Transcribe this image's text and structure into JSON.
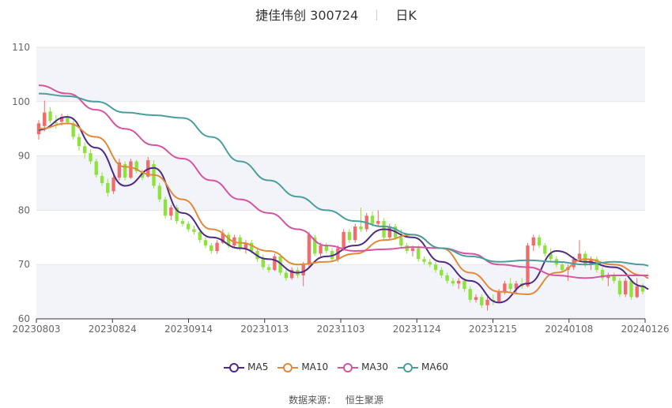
{
  "title": {
    "name": "捷佳伟创 300724",
    "period": "日K"
  },
  "source": {
    "label": "数据来源：",
    "value": "恒生聚源"
  },
  "chart_data": {
    "type": "candlestick",
    "ylim": [
      60,
      110
    ],
    "yticks": [
      60,
      70,
      80,
      90,
      100,
      110
    ],
    "xticks": [
      "20230803",
      "20230824",
      "20230914",
      "20231013",
      "20231103",
      "20231124",
      "20231215",
      "20240108",
      "20240126"
    ],
    "up_color": "#f36a6a",
    "down_color": "#8de33c",
    "candles": [
      {
        "o": 94.0,
        "h": 96.6,
        "l": 93.0,
        "c": 96.0
      },
      {
        "o": 95.5,
        "h": 100.2,
        "l": 94.5,
        "c": 98.0
      },
      {
        "o": 98.2,
        "h": 99.0,
        "l": 96.0,
        "c": 96.5
      },
      {
        "o": 96.2,
        "h": 97.5,
        "l": 95.0,
        "c": 96.0
      },
      {
        "o": 96.3,
        "h": 97.8,
        "l": 95.6,
        "c": 97.2
      },
      {
        "o": 97.0,
        "h": 97.6,
        "l": 95.8,
        "c": 96.2
      },
      {
        "o": 96.0,
        "h": 96.5,
        "l": 93.0,
        "c": 93.5
      },
      {
        "o": 93.5,
        "h": 94.2,
        "l": 91.0,
        "c": 91.8
      },
      {
        "o": 91.8,
        "h": 92.5,
        "l": 89.5,
        "c": 90.5
      },
      {
        "o": 90.5,
        "h": 91.2,
        "l": 88.5,
        "c": 89.0
      },
      {
        "o": 89.0,
        "h": 89.5,
        "l": 86.0,
        "c": 86.5
      },
      {
        "o": 86.3,
        "h": 87.0,
        "l": 84.5,
        "c": 85.0
      },
      {
        "o": 85.0,
        "h": 85.8,
        "l": 82.5,
        "c": 83.2
      },
      {
        "o": 83.5,
        "h": 86.5,
        "l": 83.0,
        "c": 86.0
      },
      {
        "o": 86.0,
        "h": 89.5,
        "l": 85.5,
        "c": 88.8
      },
      {
        "o": 88.5,
        "h": 89.0,
        "l": 85.5,
        "c": 86.0
      },
      {
        "o": 86.0,
        "h": 89.5,
        "l": 85.8,
        "c": 89.0
      },
      {
        "o": 89.0,
        "h": 89.3,
        "l": 86.8,
        "c": 87.2
      },
      {
        "o": 87.0,
        "h": 87.5,
        "l": 85.5,
        "c": 86.0
      },
      {
        "o": 86.2,
        "h": 89.8,
        "l": 86.0,
        "c": 89.2
      },
      {
        "o": 88.5,
        "h": 89.2,
        "l": 84.0,
        "c": 84.5
      },
      {
        "o": 84.5,
        "h": 85.0,
        "l": 81.5,
        "c": 82.0
      },
      {
        "o": 82.0,
        "h": 82.5,
        "l": 78.5,
        "c": 79.0
      },
      {
        "o": 79.0,
        "h": 81.0,
        "l": 78.2,
        "c": 80.5
      },
      {
        "o": 80.5,
        "h": 81.0,
        "l": 77.5,
        "c": 78.0
      },
      {
        "o": 78.0,
        "h": 78.5,
        "l": 77.0,
        "c": 77.5
      },
      {
        "o": 77.5,
        "h": 78.0,
        "l": 76.0,
        "c": 76.5
      },
      {
        "o": 76.5,
        "h": 77.2,
        "l": 75.5,
        "c": 76.0
      },
      {
        "o": 76.0,
        "h": 76.5,
        "l": 74.0,
        "c": 74.5
      },
      {
        "o": 74.5,
        "h": 75.0,
        "l": 73.0,
        "c": 73.5
      },
      {
        "o": 73.5,
        "h": 74.0,
        "l": 72.0,
        "c": 72.5
      },
      {
        "o": 72.5,
        "h": 74.5,
        "l": 72.0,
        "c": 74.0
      },
      {
        "o": 74.0,
        "h": 76.5,
        "l": 73.8,
        "c": 75.8
      },
      {
        "o": 75.5,
        "h": 76.0,
        "l": 73.0,
        "c": 73.5
      },
      {
        "o": 73.5,
        "h": 75.5,
        "l": 73.0,
        "c": 75.0
      },
      {
        "o": 75.0,
        "h": 75.5,
        "l": 72.5,
        "c": 73.0
      },
      {
        "o": 73.0,
        "h": 74.5,
        "l": 72.0,
        "c": 74.0
      },
      {
        "o": 74.0,
        "h": 74.5,
        "l": 72.0,
        "c": 72.5
      },
      {
        "o": 72.5,
        "h": 73.0,
        "l": 70.5,
        "c": 71.0
      },
      {
        "o": 71.0,
        "h": 71.8,
        "l": 69.0,
        "c": 69.5
      },
      {
        "o": 69.5,
        "h": 70.0,
        "l": 68.5,
        "c": 69.0
      },
      {
        "o": 69.0,
        "h": 72.0,
        "l": 68.8,
        "c": 71.5
      },
      {
        "o": 71.5,
        "h": 72.0,
        "l": 68.0,
        "c": 68.5
      },
      {
        "o": 68.5,
        "h": 69.0,
        "l": 67.0,
        "c": 67.5
      },
      {
        "o": 67.5,
        "h": 69.5,
        "l": 67.2,
        "c": 69.0
      },
      {
        "o": 69.0,
        "h": 69.5,
        "l": 67.5,
        "c": 68.0
      },
      {
        "o": 68.0,
        "h": 70.5,
        "l": 66.0,
        "c": 70.0
      },
      {
        "o": 70.0,
        "h": 76.0,
        "l": 69.5,
        "c": 75.5
      },
      {
        "o": 75.0,
        "h": 75.5,
        "l": 71.5,
        "c": 72.0
      },
      {
        "o": 72.0,
        "h": 74.0,
        "l": 71.5,
        "c": 73.5
      },
      {
        "o": 73.5,
        "h": 74.0,
        "l": 72.0,
        "c": 72.5
      },
      {
        "o": 72.5,
        "h": 73.0,
        "l": 70.5,
        "c": 71.0
      },
      {
        "o": 71.0,
        "h": 73.5,
        "l": 70.5,
        "c": 73.0
      },
      {
        "o": 73.0,
        "h": 76.5,
        "l": 72.5,
        "c": 76.0
      },
      {
        "o": 76.0,
        "h": 76.5,
        "l": 74.0,
        "c": 74.5
      },
      {
        "o": 74.5,
        "h": 77.5,
        "l": 74.0,
        "c": 77.0
      },
      {
        "o": 77.0,
        "h": 80.5,
        "l": 76.0,
        "c": 76.5
      },
      {
        "o": 76.5,
        "h": 79.5,
        "l": 76.0,
        "c": 79.0
      },
      {
        "o": 79.0,
        "h": 79.8,
        "l": 77.0,
        "c": 77.5
      },
      {
        "o": 77.5,
        "h": 80.0,
        "l": 77.0,
        "c": 78.0
      },
      {
        "o": 78.0,
        "h": 78.5,
        "l": 74.5,
        "c": 75.0
      },
      {
        "o": 75.0,
        "h": 77.5,
        "l": 74.5,
        "c": 77.0
      },
      {
        "o": 77.0,
        "h": 77.5,
        "l": 74.5,
        "c": 75.0
      },
      {
        "o": 75.0,
        "h": 76.5,
        "l": 73.0,
        "c": 73.5
      },
      {
        "o": 73.5,
        "h": 74.0,
        "l": 72.0,
        "c": 72.5
      },
      {
        "o": 72.5,
        "h": 73.5,
        "l": 71.5,
        "c": 73.0
      },
      {
        "o": 73.0,
        "h": 73.5,
        "l": 70.5,
        "c": 71.0
      },
      {
        "o": 71.0,
        "h": 71.5,
        "l": 70.0,
        "c": 70.5
      },
      {
        "o": 70.5,
        "h": 71.0,
        "l": 69.5,
        "c": 70.0
      },
      {
        "o": 70.0,
        "h": 70.5,
        "l": 68.5,
        "c": 69.0
      },
      {
        "o": 69.0,
        "h": 69.5,
        "l": 67.5,
        "c": 68.0
      },
      {
        "o": 68.0,
        "h": 68.5,
        "l": 66.5,
        "c": 67.0
      },
      {
        "o": 67.0,
        "h": 67.5,
        "l": 66.0,
        "c": 66.5
      },
      {
        "o": 66.5,
        "h": 67.5,
        "l": 65.5,
        "c": 67.0
      },
      {
        "o": 67.0,
        "h": 67.5,
        "l": 65.0,
        "c": 65.5
      },
      {
        "o": 65.5,
        "h": 66.0,
        "l": 63.0,
        "c": 63.5
      },
      {
        "o": 63.5,
        "h": 64.5,
        "l": 63.0,
        "c": 64.0
      },
      {
        "o": 64.0,
        "h": 64.5,
        "l": 62.0,
        "c": 62.5
      },
      {
        "o": 62.5,
        "h": 64.0,
        "l": 61.5,
        "c": 63.5
      },
      {
        "o": 63.5,
        "h": 64.5,
        "l": 62.5,
        "c": 63.2
      },
      {
        "o": 63.2,
        "h": 65.5,
        "l": 63.0,
        "c": 65.0
      },
      {
        "o": 65.0,
        "h": 67.0,
        "l": 64.5,
        "c": 66.5
      },
      {
        "o": 66.5,
        "h": 67.5,
        "l": 65.0,
        "c": 65.5
      },
      {
        "o": 65.5,
        "h": 67.0,
        "l": 64.5,
        "c": 66.5
      },
      {
        "o": 66.5,
        "h": 67.5,
        "l": 65.5,
        "c": 66.0
      },
      {
        "o": 66.0,
        "h": 74.0,
        "l": 65.8,
        "c": 73.5
      },
      {
        "o": 73.5,
        "h": 75.5,
        "l": 72.5,
        "c": 75.0
      },
      {
        "o": 75.0,
        "h": 75.5,
        "l": 73.0,
        "c": 73.5
      },
      {
        "o": 73.5,
        "h": 74.0,
        "l": 71.5,
        "c": 72.0
      },
      {
        "o": 72.0,
        "h": 73.0,
        "l": 70.5,
        "c": 71.0
      },
      {
        "o": 71.0,
        "h": 71.5,
        "l": 69.5,
        "c": 70.0
      },
      {
        "o": 70.0,
        "h": 70.5,
        "l": 68.5,
        "c": 69.0
      },
      {
        "o": 69.0,
        "h": 70.0,
        "l": 67.0,
        "c": 69.5
      },
      {
        "o": 69.5,
        "h": 71.5,
        "l": 69.0,
        "c": 71.0
      },
      {
        "o": 71.0,
        "h": 74.5,
        "l": 70.5,
        "c": 72.0
      },
      {
        "o": 72.0,
        "h": 72.5,
        "l": 69.5,
        "c": 70.0
      },
      {
        "o": 70.0,
        "h": 71.5,
        "l": 69.0,
        "c": 71.0
      },
      {
        "o": 71.0,
        "h": 71.5,
        "l": 68.5,
        "c": 69.0
      },
      {
        "o": 69.0,
        "h": 69.5,
        "l": 67.0,
        "c": 67.5
      },
      {
        "o": 67.5,
        "h": 68.5,
        "l": 66.0,
        "c": 68.0
      },
      {
        "o": 68.0,
        "h": 68.5,
        "l": 66.5,
        "c": 67.0
      },
      {
        "o": 67.0,
        "h": 67.5,
        "l": 64.0,
        "c": 64.5
      },
      {
        "o": 64.5,
        "h": 67.5,
        "l": 64.0,
        "c": 67.0
      },
      {
        "o": 67.0,
        "h": 67.5,
        "l": 63.5,
        "c": 64.0
      },
      {
        "o": 64.0,
        "h": 67.5,
        "l": 63.8,
        "c": 66.0
      },
      {
        "o": 66.0,
        "h": 66.5,
        "l": 64.5,
        "c": 65.0
      }
    ],
    "series": [
      {
        "name": "MA5",
        "color": "#4e2a84",
        "values": [
          [
            0,
            94.8
          ],
          [
            5,
            97.2
          ],
          [
            10,
            91.5
          ],
          [
            15,
            84.5
          ],
          [
            20,
            87.8
          ],
          [
            25,
            79.5
          ],
          [
            30,
            75.0
          ],
          [
            35,
            73.0
          ],
          [
            40,
            71.0
          ],
          [
            45,
            68.5
          ],
          [
            50,
            71.5
          ],
          [
            55,
            73.5
          ],
          [
            60,
            76.5
          ],
          [
            65,
            75.0
          ],
          [
            70,
            70.5
          ],
          [
            75,
            67.0
          ],
          [
            80,
            63.0
          ],
          [
            85,
            66.5
          ],
          [
            90,
            72.5
          ],
          [
            95,
            70.5
          ],
          [
            100,
            69.5
          ],
          [
            105,
            66.0
          ],
          [
            106,
            65.5
          ]
        ]
      },
      {
        "name": "MA10",
        "color": "#e08a3a",
        "values": [
          [
            0,
            95.0
          ],
          [
            5,
            96.0
          ],
          [
            10,
            93.5
          ],
          [
            15,
            88.0
          ],
          [
            20,
            86.5
          ],
          [
            25,
            82.0
          ],
          [
            30,
            76.5
          ],
          [
            35,
            74.0
          ],
          [
            40,
            72.5
          ],
          [
            45,
            70.0
          ],
          [
            50,
            70.5
          ],
          [
            55,
            72.0
          ],
          [
            60,
            74.5
          ],
          [
            65,
            75.5
          ],
          [
            70,
            73.0
          ],
          [
            75,
            68.5
          ],
          [
            80,
            65.0
          ],
          [
            85,
            64.5
          ],
          [
            90,
            68.5
          ],
          [
            95,
            71.0
          ],
          [
            100,
            70.0
          ],
          [
            105,
            68.0
          ],
          [
            106,
            67.5
          ]
        ]
      },
      {
        "name": "MA30",
        "color": "#d455a0",
        "values": [
          [
            0,
            103.0
          ],
          [
            5,
            101.5
          ],
          [
            10,
            98.5
          ],
          [
            15,
            95.0
          ],
          [
            20,
            92.0
          ],
          [
            25,
            89.5
          ],
          [
            30,
            85.5
          ],
          [
            35,
            82.0
          ],
          [
            40,
            79.5
          ],
          [
            45,
            76.5
          ],
          [
            50,
            73.5
          ],
          [
            55,
            72.5
          ],
          [
            60,
            72.8
          ],
          [
            65,
            73.2
          ],
          [
            70,
            73.0
          ],
          [
            75,
            72.0
          ],
          [
            80,
            70.0
          ],
          [
            85,
            69.5
          ],
          [
            90,
            68.0
          ],
          [
            95,
            67.5
          ],
          [
            100,
            68.0
          ],
          [
            105,
            68.0
          ],
          [
            106,
            68.0
          ]
        ]
      },
      {
        "name": "MA60",
        "color": "#4a9e9e",
        "values": [
          [
            0,
            101.5
          ],
          [
            5,
            101.0
          ],
          [
            10,
            100.0
          ],
          [
            15,
            98.0
          ],
          [
            20,
            97.5
          ],
          [
            25,
            97.0
          ],
          [
            30,
            93.5
          ],
          [
            35,
            89.0
          ],
          [
            40,
            85.5
          ],
          [
            45,
            82.5
          ],
          [
            50,
            80.0
          ],
          [
            55,
            78.0
          ],
          [
            60,
            77.0
          ],
          [
            65,
            75.5
          ],
          [
            70,
            73.0
          ],
          [
            75,
            71.5
          ],
          [
            80,
            70.5
          ],
          [
            85,
            70.8
          ],
          [
            90,
            70.5
          ],
          [
            95,
            70.0
          ],
          [
            100,
            70.5
          ],
          [
            105,
            70.0
          ],
          [
            106,
            69.8
          ]
        ]
      }
    ]
  }
}
